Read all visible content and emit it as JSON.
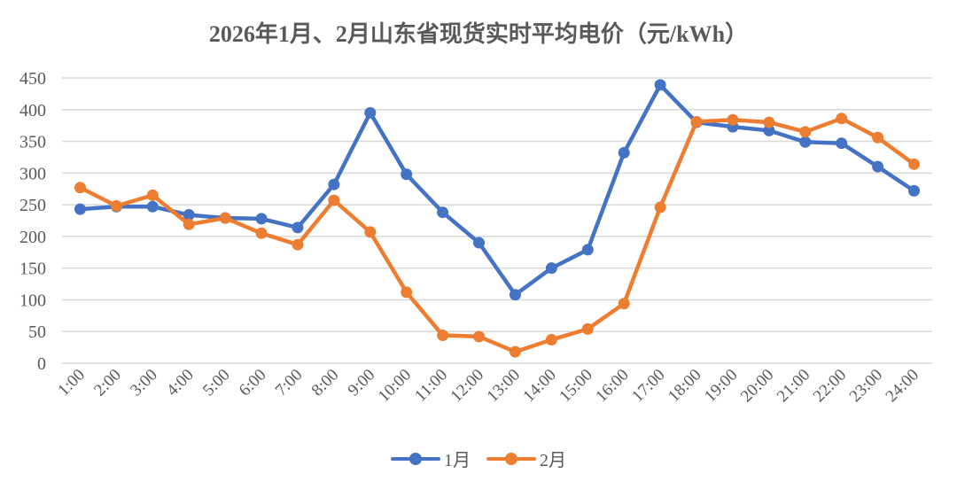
{
  "title": "2026年1月、2月山东省现货实时平均电价（元/kWh）",
  "chart_data": {
    "type": "line",
    "title": "2026年1月、2月山东省现货实时平均电价（元/kWh）",
    "xlabel": "",
    "ylabel": "",
    "ylim": [
      0,
      450
    ],
    "yticks": [
      0,
      50,
      100,
      150,
      200,
      250,
      300,
      350,
      400,
      450
    ],
    "grid": true,
    "legend_position": "bottom",
    "categories": [
      "1:00",
      "2:00",
      "3:00",
      "4:00",
      "5:00",
      "6:00",
      "7:00",
      "8:00",
      "9:00",
      "10:00",
      "11:00",
      "12:00",
      "13:00",
      "14:00",
      "15:00",
      "16:00",
      "17:00",
      "18:00",
      "19:00",
      "20:00",
      "21:00",
      "22:00",
      "23:00",
      "24:00"
    ],
    "series": [
      {
        "name": "1月",
        "color": "#4472C4",
        "values": [
          243,
          247,
          247,
          234,
          229,
          228,
          214,
          282,
          395,
          298,
          238,
          190,
          108,
          150,
          179,
          332,
          439,
          380,
          373,
          367,
          349,
          347,
          310,
          272
        ]
      },
      {
        "name": "2月",
        "color": "#ED7D31",
        "values": [
          277,
          248,
          265,
          219,
          229,
          205,
          187,
          257,
          207,
          112,
          44,
          42,
          18,
          37,
          54,
          94,
          246,
          381,
          384,
          380,
          365,
          386,
          356,
          314
        ]
      }
    ]
  },
  "legend": {
    "items": [
      {
        "label": "1月",
        "color": "#4472C4"
      },
      {
        "label": "2月",
        "color": "#ED7D31"
      }
    ]
  }
}
